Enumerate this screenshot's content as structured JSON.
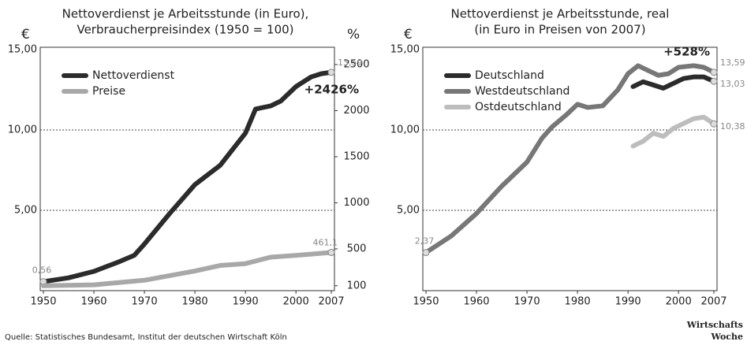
{
  "chart_data": [
    {
      "type": "line",
      "title": "Nettoverdienst je Arbeitsstunde (in Euro),",
      "subtitle": "Verbraucherpreisindex (1950 = 100)",
      "y_unit": "€",
      "y2_unit": "%",
      "xlim": [
        1950,
        2007
      ],
      "xticks": [
        1950,
        1960,
        1970,
        1980,
        1990,
        2000,
        2007
      ],
      "ylim": [
        0,
        15
      ],
      "yticks": [
        {
          "value": 15,
          "label": "15,00"
        },
        {
          "value": 10,
          "label": "10,00"
        },
        {
          "value": 5,
          "label": "5,00"
        }
      ],
      "y2lim": [
        47,
        2662
      ],
      "y2ticks": [
        2500,
        2000,
        1500,
        1000,
        500,
        100
      ],
      "grid": true,
      "legend": "upper left",
      "annotations": [
        "+2426%"
      ],
      "series": [
        {
          "name": "Nettoverdienst",
          "color": "#2b2b2b",
          "x": [
            1950,
            1955,
            1960,
            1965,
            1968,
            1970,
            1975,
            1980,
            1985,
            1990,
            1992,
            1995,
            1997,
            2000,
            2003,
            2005,
            2007
          ],
          "values": [
            0.56,
            0.8,
            1.2,
            1.8,
            2.2,
            2.9,
            4.8,
            6.6,
            7.8,
            9.8,
            11.3,
            11.5,
            11.8,
            12.7,
            13.3,
            13.5,
            13.59
          ],
          "value_labels": [
            "0,56",
            null,
            null,
            null,
            null,
            null,
            null,
            null,
            null,
            null,
            null,
            null,
            null,
            null,
            null,
            null,
            "13,59"
          ]
        },
        {
          "name": "Preise",
          "color": "#a8a8a8",
          "axis": "y2",
          "x": [
            1950,
            1960,
            1970,
            1980,
            1985,
            1990,
            1995,
            2000,
            2007
          ],
          "values": [
            100,
            110,
            160,
            260,
            320,
            340,
            410,
            430,
            461.1
          ],
          "value_labels": [
            null,
            null,
            null,
            null,
            null,
            null,
            null,
            null,
            "461,1"
          ]
        }
      ]
    },
    {
      "type": "line",
      "title": "Nettoverdienst je Arbeitsstunde, real",
      "subtitle": "(in Euro in Preisen von 2007)",
      "y_unit": "€",
      "xlim": [
        1950,
        2007
      ],
      "xticks": [
        1950,
        1960,
        1970,
        1980,
        1990,
        2000,
        2007
      ],
      "ylim": [
        0,
        15
      ],
      "yticks": [
        {
          "value": 15,
          "label": "15,00"
        },
        {
          "value": 10,
          "label": "10,00"
        },
        {
          "value": 5,
          "label": "5,00"
        }
      ],
      "grid": true,
      "legend": "upper left",
      "annotations": [
        "+528%"
      ],
      "series": [
        {
          "name": "Deutschland",
          "color": "#2b2b2b",
          "x": [
            1991,
            1993,
            1995,
            1997,
            1999,
            2001,
            2003,
            2005,
            2007
          ],
          "values": [
            12.7,
            13.0,
            12.8,
            12.6,
            12.9,
            13.2,
            13.3,
            13.3,
            13.03
          ],
          "value_labels": [
            null,
            null,
            null,
            null,
            null,
            null,
            null,
            null,
            "13,03"
          ]
        },
        {
          "name": "Westdeutschland",
          "color": "#777777",
          "x": [
            1950,
            1955,
            1960,
            1965,
            1970,
            1973,
            1975,
            1978,
            1980,
            1982,
            1985,
            1988,
            1990,
            1992,
            1994,
            1996,
            1998,
            2000,
            2003,
            2005,
            2007
          ],
          "values": [
            2.37,
            3.4,
            4.8,
            6.5,
            8.0,
            9.5,
            10.2,
            11.0,
            11.6,
            11.4,
            11.5,
            12.5,
            13.5,
            14.0,
            13.7,
            13.4,
            13.5,
            13.9,
            14.0,
            13.9,
            13.59
          ],
          "value_labels": [
            "2,37",
            null,
            null,
            null,
            null,
            null,
            null,
            null,
            null,
            null,
            null,
            null,
            null,
            null,
            null,
            null,
            null,
            null,
            null,
            null,
            "13,59"
          ]
        },
        {
          "name": "Ostdeutschland",
          "color": "#bdbdbd",
          "x": [
            1991,
            1993,
            1995,
            1997,
            1999,
            2001,
            2003,
            2005,
            2007
          ],
          "values": [
            9.0,
            9.3,
            9.8,
            9.6,
            10.1,
            10.4,
            10.7,
            10.8,
            10.38
          ],
          "value_labels": [
            null,
            null,
            null,
            null,
            null,
            null,
            null,
            null,
            "10,38"
          ]
        }
      ]
    }
  ],
  "source": "Quelle: Statistisches Bundesamt, Institut der deutschen Wirtschaft Köln",
  "brand": [
    "Wirtschafts",
    "Woche"
  ]
}
